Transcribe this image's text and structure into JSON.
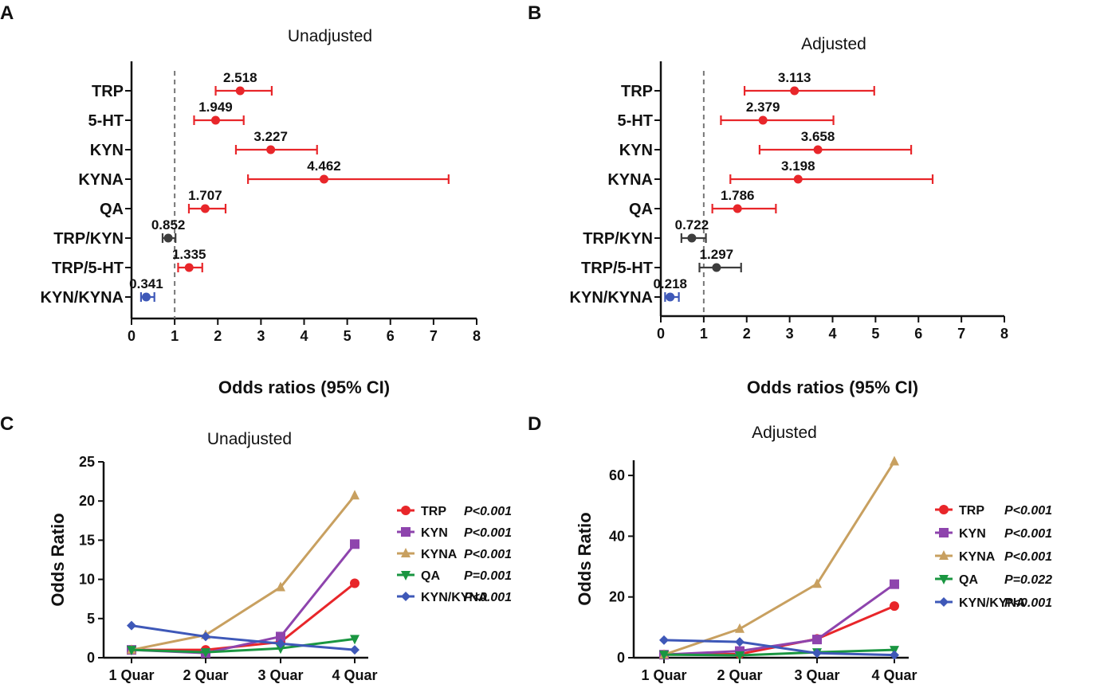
{
  "colors": {
    "significant": "#e8262a",
    "nonsignificant": "#3d3d3d",
    "protective": "#3e58b8",
    "axis": "#111111",
    "reference_line": "#777777"
  },
  "chart_data": [
    {
      "panel": "A",
      "type": "forest",
      "title": "Unadjusted",
      "xlabel": "Odds ratios  (95% CI)",
      "xlim": [
        0,
        8
      ],
      "xticks": [
        0,
        1,
        2,
        3,
        4,
        5,
        6,
        7,
        8
      ],
      "reference_line": 1,
      "rows": [
        {
          "label": "TRP",
          "or": 2.518,
          "value_label": "2.518",
          "ci": [
            1.95,
            3.25
          ],
          "color": "significant"
        },
        {
          "label": "5-HT",
          "or": 1.949,
          "value_label": "1.949",
          "ci": [
            1.45,
            2.6
          ],
          "color": "significant"
        },
        {
          "label": "KYN",
          "or": 3.227,
          "value_label": "3.227",
          "ci": [
            2.42,
            4.3
          ],
          "color": "significant"
        },
        {
          "label": "KYNA",
          "or": 4.462,
          "value_label": "4.462",
          "ci": [
            2.7,
            7.35
          ],
          "color": "significant"
        },
        {
          "label": "QA",
          "or": 1.707,
          "value_label": "1.707",
          "ci": [
            1.33,
            2.18
          ],
          "color": "significant"
        },
        {
          "label": "TRP/KYN",
          "or": 0.852,
          "value_label": "0.852",
          "ci": [
            0.72,
            1.02
          ],
          "color": "nonsignificant"
        },
        {
          "label": "TRP/5-HT",
          "or": 1.335,
          "value_label": "1.335",
          "ci": [
            1.08,
            1.64
          ],
          "color": "significant"
        },
        {
          "label": "KYN/KYNA",
          "or": 0.341,
          "value_label": "0.341",
          "ci": [
            0.22,
            0.53
          ],
          "color": "protective"
        }
      ]
    },
    {
      "panel": "B",
      "type": "forest",
      "title": "Adjusted",
      "xlabel": "Odds ratios (95% CI)",
      "xlim": [
        0,
        8
      ],
      "xticks": [
        0,
        1,
        2,
        3,
        4,
        5,
        6,
        7,
        8
      ],
      "reference_line": 1,
      "rows": [
        {
          "label": "TRP",
          "or": 3.113,
          "value_label": "3.113",
          "ci": [
            1.95,
            4.97
          ],
          "color": "significant"
        },
        {
          "label": "5-HT",
          "or": 2.379,
          "value_label": "2.379",
          "ci": [
            1.4,
            4.02
          ],
          "color": "significant"
        },
        {
          "label": "KYN",
          "or": 3.658,
          "value_label": "3.658",
          "ci": [
            2.3,
            5.83
          ],
          "color": "significant"
        },
        {
          "label": "KYNA",
          "or": 3.198,
          "value_label": "3.198",
          "ci": [
            1.62,
            6.33
          ],
          "color": "significant"
        },
        {
          "label": "QA",
          "or": 1.786,
          "value_label": "1.786",
          "ci": [
            1.2,
            2.68
          ],
          "color": "significant"
        },
        {
          "label": "TRP/KYN",
          "or": 0.722,
          "value_label": "0.722",
          "ci": [
            0.48,
            1.05
          ],
          "color": "nonsignificant"
        },
        {
          "label": "TRP/5-HT",
          "or": 1.297,
          "value_label": "1.297",
          "ci": [
            0.9,
            1.87
          ],
          "color": "nonsignificant"
        },
        {
          "label": "KYN/KYNA",
          "or": 0.218,
          "value_label": "0.218",
          "ci": [
            0.1,
            0.42
          ],
          "color": "protective"
        }
      ]
    },
    {
      "panel": "C",
      "type": "line",
      "title": "Unadjusted",
      "ylabel": "Odds Ratio",
      "categories": [
        "1 Quar",
        "2 Quar",
        "3 Quar",
        "4 Quar"
      ],
      "ylim": [
        0,
        25
      ],
      "yticks": [
        0,
        5,
        10,
        15,
        20,
        25
      ],
      "series": [
        {
          "name": "TRP",
          "p": "P<0.001",
          "color": "#e8262a",
          "marker": "circle",
          "values": [
            1.0,
            1.0,
            2.0,
            9.5
          ]
        },
        {
          "name": "KYN",
          "p": "P<0.001",
          "color": "#8e44ad",
          "marker": "square",
          "values": [
            1.0,
            0.6,
            2.7,
            14.5
          ]
        },
        {
          "name": "KYNA",
          "p": "P<0.001",
          "color": "#c8a060",
          "marker": "triangle-up",
          "values": [
            1.0,
            2.9,
            9.0,
            20.7
          ]
        },
        {
          "name": "QA",
          "p": "P=0.001",
          "color": "#1a9641",
          "marker": "triangle-down",
          "values": [
            1.0,
            0.7,
            1.2,
            2.4
          ]
        },
        {
          "name": "KYN/KYNA",
          "p": "P<0.001",
          "color": "#3e58b8",
          "marker": "diamond",
          "values": [
            4.1,
            2.7,
            1.8,
            1.0
          ]
        }
      ]
    },
    {
      "panel": "D",
      "type": "line",
      "title": "Adjusted",
      "ylabel": "Odds Ratio",
      "categories": [
        "1 Quar",
        "2 Quar",
        "3 Quar",
        "4 Quar"
      ],
      "ylim": [
        0,
        65
      ],
      "yticks": [
        0,
        20,
        40,
        60
      ],
      "series": [
        {
          "name": "TRP",
          "p": "P<0.001",
          "color": "#e8262a",
          "marker": "circle",
          "values": [
            1.0,
            1.2,
            6.2,
            17.0
          ]
        },
        {
          "name": "KYN",
          "p": "P<0.001",
          "color": "#8e44ad",
          "marker": "square",
          "values": [
            1.0,
            2.2,
            6.0,
            24.2
          ]
        },
        {
          "name": "KYNA",
          "p": "P<0.001",
          "color": "#c8a060",
          "marker": "triangle-up",
          "values": [
            1.0,
            9.5,
            24.3,
            64.6
          ]
        },
        {
          "name": "QA",
          "p": "P=0.022",
          "color": "#1a9641",
          "marker": "triangle-down",
          "values": [
            1.0,
            0.8,
            1.8,
            2.6
          ]
        },
        {
          "name": "KYN/KYNA",
          "p": "P<0.001",
          "color": "#3e58b8",
          "marker": "diamond",
          "values": [
            5.8,
            5.2,
            1.5,
            0.9
          ]
        }
      ]
    }
  ]
}
